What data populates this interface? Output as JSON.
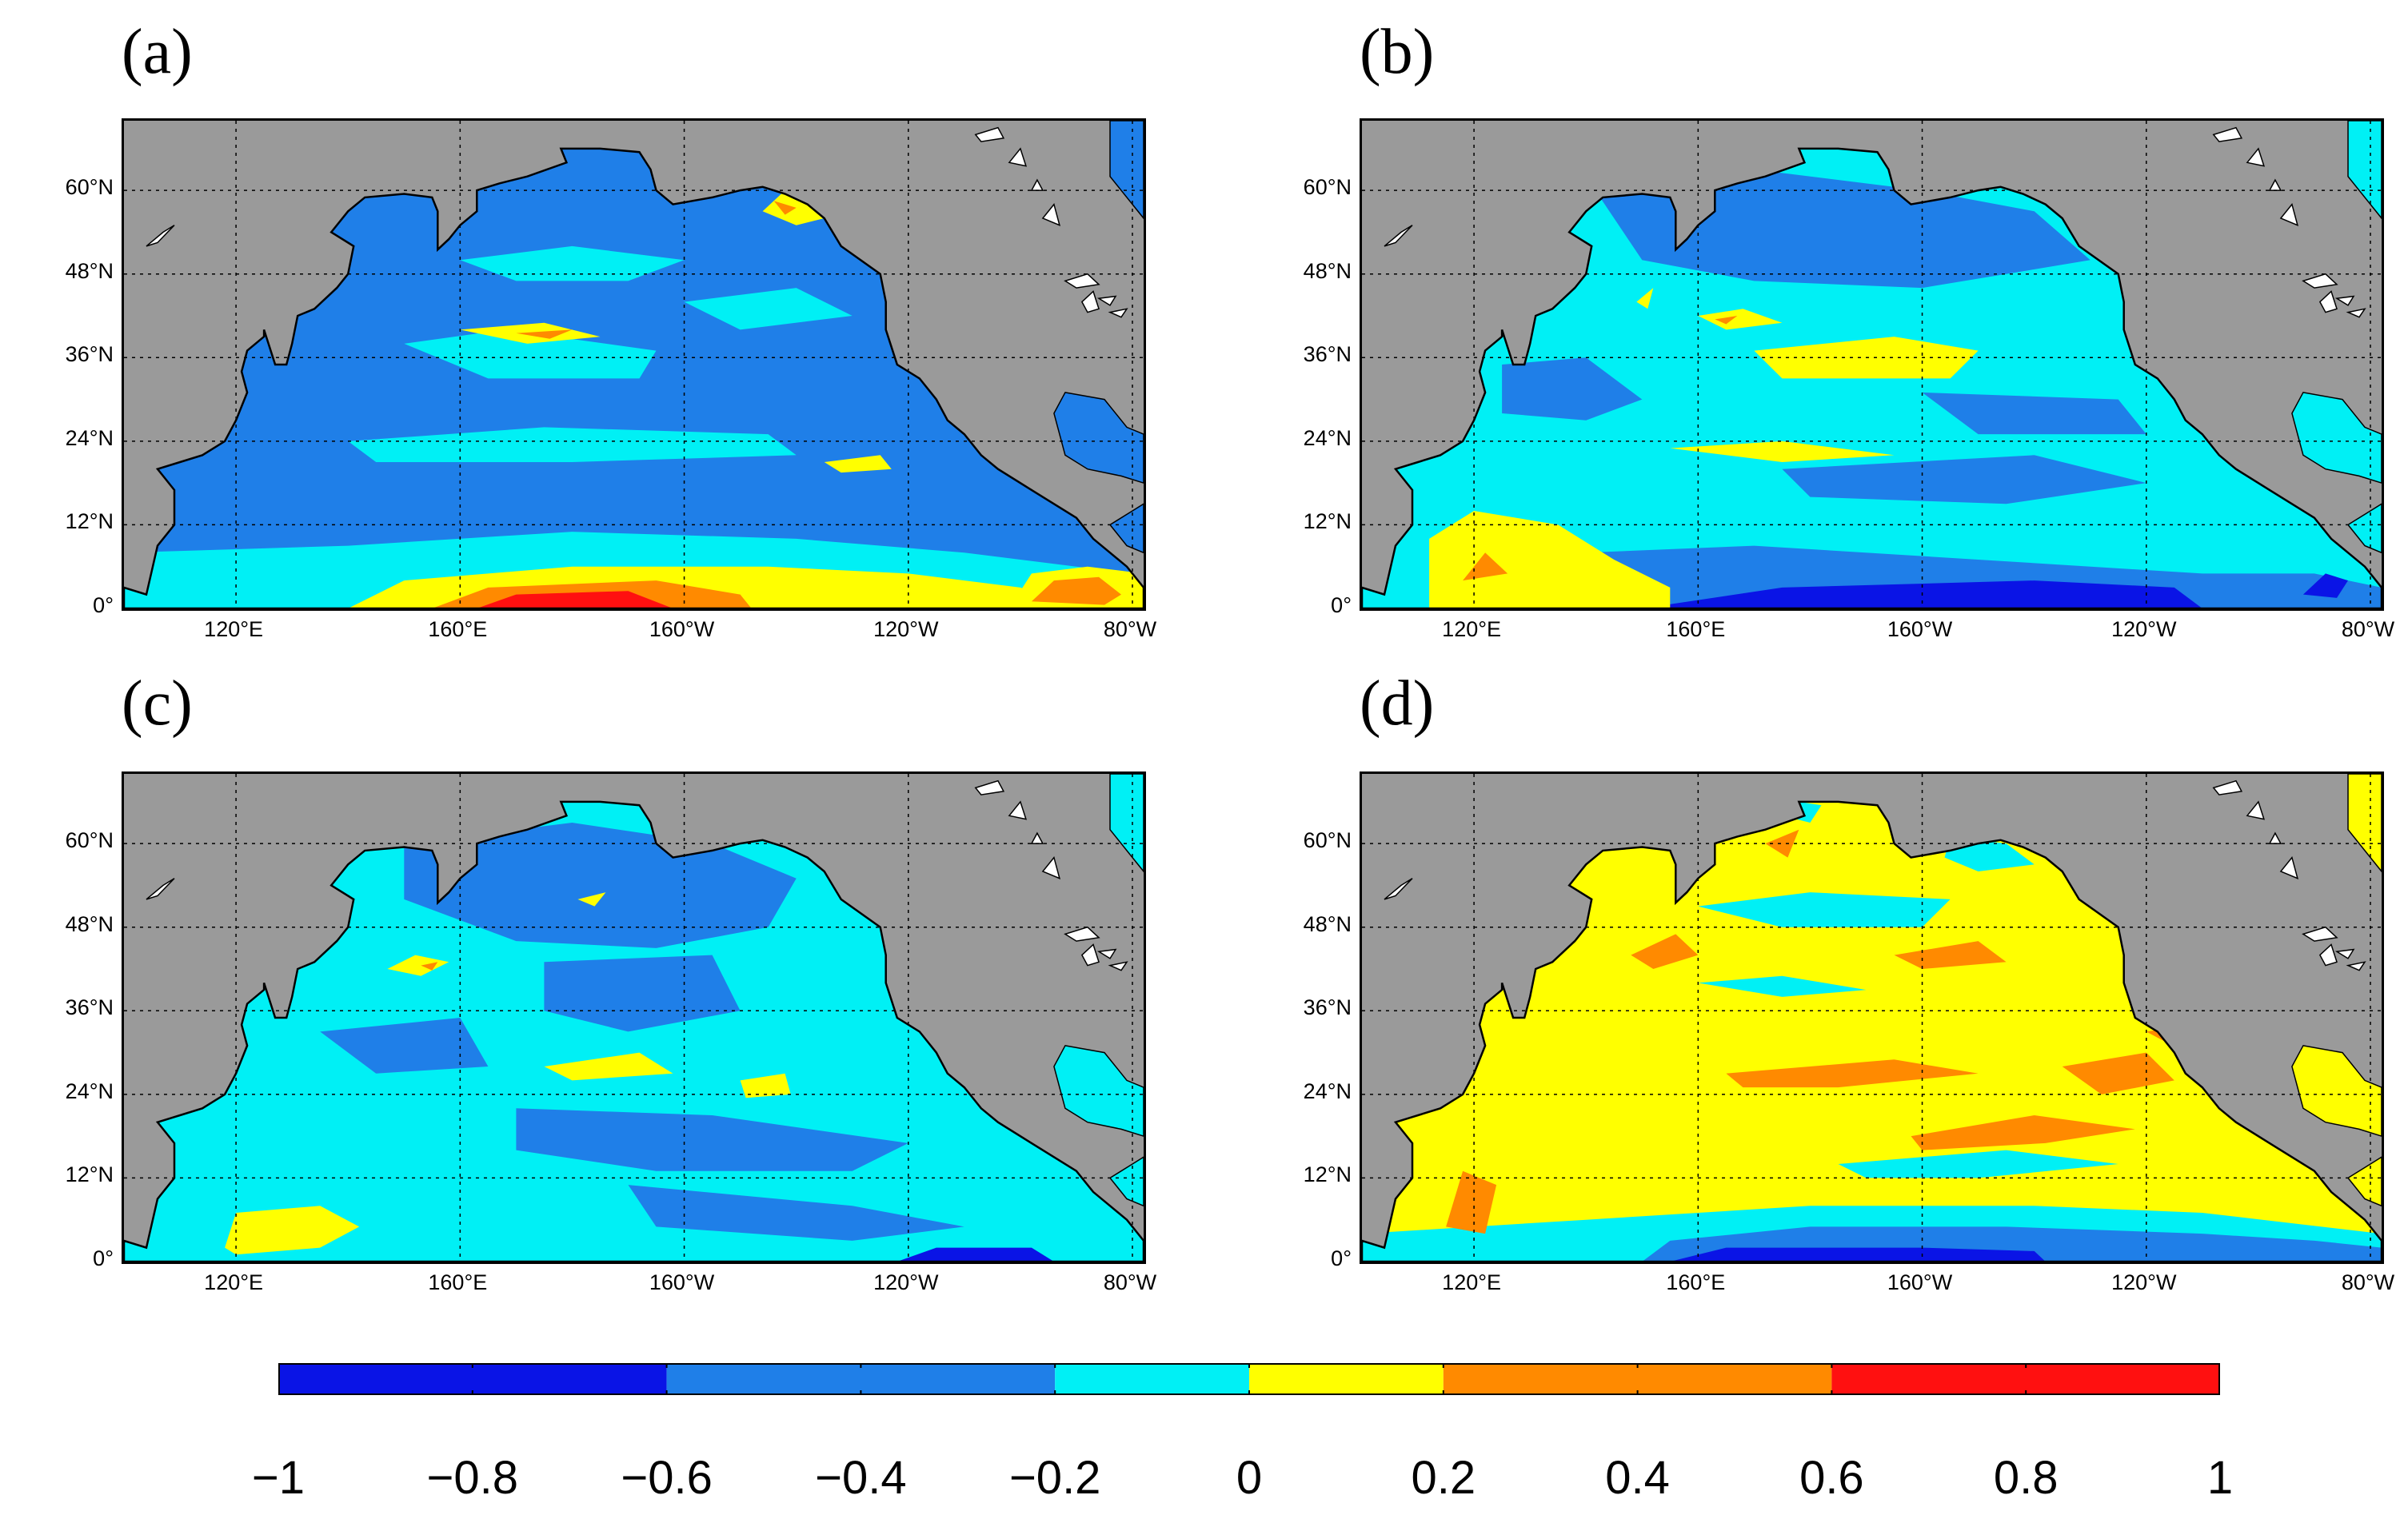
{
  "panels": [
    {
      "label": "(a)",
      "pattern": "a"
    },
    {
      "label": "(b)",
      "pattern": "b"
    },
    {
      "label": "(c)",
      "pattern": "c"
    },
    {
      "label": "(d)",
      "pattern": "d"
    }
  ],
  "lat_ticks": [
    "60°N",
    "48°N",
    "36°N",
    "24°N",
    "12°N",
    "0°"
  ],
  "lat_values": [
    60,
    48,
    36,
    24,
    12,
    0
  ],
  "lon_ticks": [
    "120°E",
    "160°E",
    "160°W",
    "120°W",
    "80°W"
  ],
  "lon_values": [
    120,
    160,
    200,
    240,
    280
  ],
  "map_extent": {
    "lon": [
      100,
      282
    ],
    "lat": [
      0,
      70
    ]
  },
  "colorbar": {
    "ticks": [
      "−1",
      "−0.8",
      "−0.6",
      "−0.4",
      "−0.2",
      "0",
      "0.2",
      "0.4",
      "0.6",
      "0.8",
      "1"
    ],
    "range": [
      -1,
      1
    ],
    "bins": [
      {
        "from": -1.0,
        "to": -0.6,
        "color": "#0a14e6"
      },
      {
        "from": -0.6,
        "to": -0.2,
        "color": "#1f7fe8"
      },
      {
        "from": -0.2,
        "to": 0.0,
        "color": "#00f0f5"
      },
      {
        "from": 0.0,
        "to": 0.2,
        "color": "#ffff00"
      },
      {
        "from": 0.2,
        "to": 0.6,
        "color": "#ff8a00"
      },
      {
        "from": 0.6,
        "to": 1.0,
        "color": "#ff1010"
      }
    ]
  },
  "colors": {
    "land": "#9a9a9a",
    "lake": "#ffffff",
    "coast": "#000000"
  }
}
